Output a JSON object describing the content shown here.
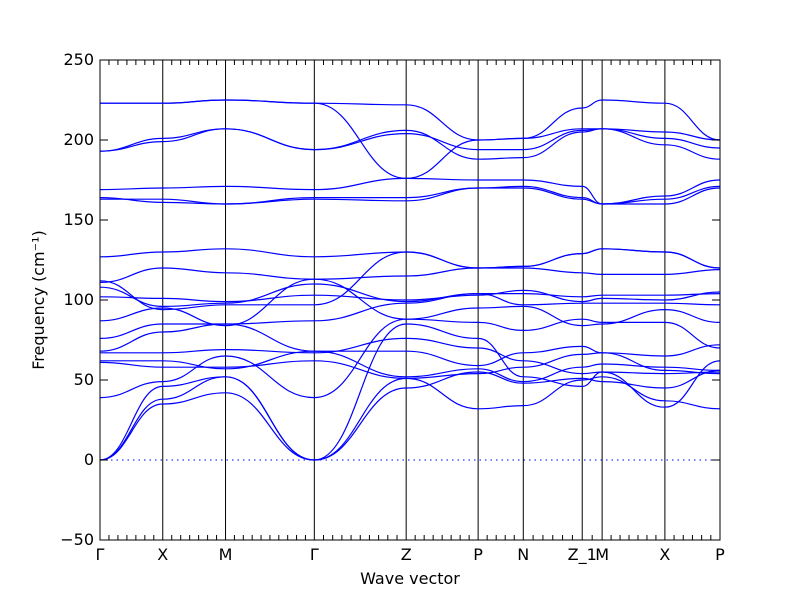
{
  "chart_data": {
    "type": "line",
    "title": "",
    "xlabel": "Wave vector",
    "ylabel": "Frequency (cm⁻¹)",
    "ylim": [
      -50,
      250
    ],
    "yticks": [
      -50,
      0,
      50,
      100,
      150,
      200,
      250
    ],
    "grid": false,
    "legend": "none",
    "line_color": "#0000ff",
    "reference_line": {
      "y": 0,
      "style": "dotted"
    },
    "path_distance_range": [
      0,
      8.1
    ],
    "high_symmetry_points": [
      {
        "label": "Γ",
        "x": 0.0
      },
      {
        "label": "X",
        "x": 0.82
      },
      {
        "label": "M",
        "x": 1.64
      },
      {
        "label": "Γ",
        "x": 2.8
      },
      {
        "label": "Z",
        "x": 4.0
      },
      {
        "label": "P",
        "x": 4.94
      },
      {
        "label": "N",
        "x": 5.53
      },
      {
        "label": "Z_1",
        "x": 6.3
      },
      {
        "label": "M",
        "x": 6.56
      },
      {
        "label": "X",
        "x": 7.38
      },
      {
        "label": "P",
        "x": 8.1
      }
    ],
    "bands": [
      {
        "x": [
          0,
          0.82,
          1.64,
          2.8,
          4.0,
          4.94,
          5.53,
          6.3,
          6.56,
          7.38,
          8.1
        ],
        "y": [
          0,
          35,
          42,
          0,
          85,
          76,
          52,
          46,
          55,
          33,
          62
        ]
      },
      {
        "x": [
          0,
          0.82,
          1.64,
          2.8,
          4.0,
          4.94,
          5.53,
          6.3,
          6.56,
          7.38,
          8.1
        ],
        "y": [
          0,
          38,
          52,
          0,
          51,
          32,
          34,
          50,
          52,
          37,
          32
        ]
      },
      {
        "x": [
          0,
          0.82,
          1.64,
          2.8,
          4.0,
          4.94,
          5.53,
          6.3,
          6.56,
          7.38,
          8.1
        ],
        "y": [
          0,
          46,
          52,
          0,
          45,
          55,
          48,
          51,
          49,
          45,
          56
        ]
      },
      {
        "x": [
          0,
          0.82,
          1.64,
          2.8,
          4.0,
          4.94,
          5.53,
          6.3,
          6.56,
          7.38,
          8.1
        ],
        "y": [
          39,
          49,
          65,
          39,
          88,
          86,
          81,
          88,
          86,
          86,
          70
        ]
      },
      {
        "x": [
          0,
          0.82,
          1.64,
          2.8,
          4.0,
          4.94,
          5.53,
          6.3,
          6.56,
          7.38,
          8.1
        ],
        "y": [
          61,
          58,
          58,
          62,
          51,
          54,
          58,
          66,
          67,
          56,
          54
        ]
      },
      {
        "x": [
          0,
          0.82,
          1.64,
          2.8,
          4.0,
          4.94,
          5.53,
          6.3,
          6.56,
          7.38,
          8.1
        ],
        "y": [
          62,
          62,
          57,
          68,
          68,
          59,
          67,
          71,
          67,
          65,
          72
        ]
      },
      {
        "x": [
          0,
          0.82,
          1.64,
          2.8,
          4.0,
          4.94,
          5.53,
          6.3,
          6.56,
          7.38,
          8.1
        ],
        "y": [
          67,
          67,
          69,
          67,
          76,
          70,
          62,
          54,
          55,
          54,
          55
        ]
      },
      {
        "x": [
          0,
          0.82,
          1.64,
          2.8,
          4.0,
          4.94,
          5.53,
          6.3,
          6.56,
          7.38,
          8.1
        ],
        "y": [
          68,
          80,
          85,
          68,
          52,
          57,
          49,
          58,
          60,
          58,
          56
        ]
      },
      {
        "x": [
          0,
          0.82,
          1.64,
          2.8,
          4.0,
          4.94,
          5.53,
          6.3,
          6.56,
          7.38,
          8.1
        ],
        "y": [
          76,
          85,
          85,
          87,
          98,
          104,
          97,
          98,
          98,
          98,
          97
        ]
      },
      {
        "x": [
          0,
          0.82,
          1.64,
          2.8,
          4.0,
          4.94,
          5.53,
          6.3,
          6.56,
          7.38,
          8.1
        ],
        "y": [
          87,
          95,
          84,
          113,
          88,
          95,
          96,
          84,
          85,
          94,
          86
        ]
      },
      {
        "x": [
          0,
          0.82,
          1.64,
          2.8,
          4.0,
          4.94,
          5.53,
          6.3,
          6.56,
          7.38,
          8.1
        ],
        "y": [
          102,
          101,
          99,
          103,
          100,
          103,
          106,
          99,
          101,
          100,
          105
        ]
      },
      {
        "x": [
          0,
          0.82,
          1.64,
          2.8,
          4.0,
          4.94,
          5.53,
          6.3,
          6.56,
          7.38,
          8.1
        ],
        "y": [
          108,
          96,
          98,
          110,
          99,
          104,
          104,
          102,
          103,
          103,
          104
        ]
      },
      {
        "x": [
          0,
          0.82,
          1.64,
          2.8,
          4.0,
          4.94,
          5.53,
          6.3,
          6.56,
          7.38,
          8.1
        ],
        "y": [
          111,
          120,
          117,
          113,
          115,
          120,
          120,
          117,
          116,
          116,
          119
        ]
      },
      {
        "x": [
          0,
          0.82,
          1.64,
          2.8,
          4.0,
          4.94,
          5.53,
          6.3,
          6.56,
          7.38,
          8.1
        ],
        "y": [
          112,
          94,
          97,
          97,
          130,
          120,
          121,
          129,
          132,
          130,
          120
        ]
      },
      {
        "x": [
          0,
          0.82,
          1.64,
          2.8,
          4.0,
          4.94,
          5.53,
          6.3,
          6.56,
          7.38,
          8.1
        ],
        "y": [
          127,
          130,
          132,
          127,
          130,
          120,
          121,
          129,
          132,
          130,
          120
        ]
      },
      {
        "x": [
          0,
          0.82,
          1.64,
          2.8,
          4.0,
          4.94,
          5.53,
          6.3,
          6.56,
          7.38,
          8.1
        ],
        "y": [
          163,
          163,
          160,
          163,
          162,
          170,
          170,
          163,
          160,
          160,
          170
        ]
      },
      {
        "x": [
          0,
          0.82,
          1.64,
          2.8,
          4.0,
          4.94,
          5.53,
          6.3,
          6.56,
          7.38,
          8.1
        ],
        "y": [
          164,
          161,
          160,
          164,
          164,
          170,
          171,
          164,
          160,
          163,
          171
        ]
      },
      {
        "x": [
          0,
          0.82,
          1.64,
          2.8,
          4.0,
          4.94,
          5.53,
          6.3,
          6.56,
          7.38,
          8.1
        ],
        "y": [
          169,
          170,
          171,
          169,
          176,
          175,
          175,
          171,
          160,
          165,
          175
        ]
      },
      {
        "x": [
          0,
          0.82,
          1.64,
          2.8,
          4.0,
          4.94,
          5.53,
          6.3,
          6.56,
          7.38,
          8.1
        ],
        "y": [
          193,
          199,
          207,
          194,
          206,
          188,
          189,
          205,
          207,
          197,
          188
        ]
      },
      {
        "x": [
          0,
          0.82,
          1.64,
          2.8,
          4.0,
          4.94,
          5.53,
          6.3,
          6.56,
          7.38,
          8.1
        ],
        "y": [
          193,
          201,
          207,
          194,
          204,
          194,
          194,
          206,
          207,
          201,
          195
        ]
      },
      {
        "x": [
          0,
          0.82,
          1.64,
          2.8,
          4.0,
          4.94,
          5.53,
          6.3,
          6.56,
          7.38,
          8.1
        ],
        "y": [
          223,
          223,
          225,
          223,
          176,
          200,
          201,
          207,
          207,
          205,
          200
        ]
      },
      {
        "x": [
          0,
          0.82,
          1.64,
          2.8,
          4.0,
          4.94,
          5.53,
          6.3,
          6.56,
          7.38,
          8.1
        ],
        "y": [
          223,
          223,
          225,
          223,
          222,
          200,
          201,
          220,
          225,
          223,
          200
        ]
      }
    ]
  }
}
